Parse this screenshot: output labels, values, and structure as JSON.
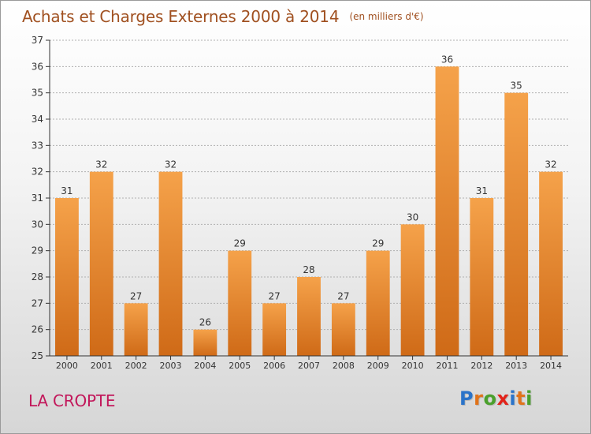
{
  "title": "Achats et Charges Externes 2000 à 2014",
  "subtitle": "(en milliers d'€)",
  "commune": "LA CROPTE",
  "logo": {
    "text": "Proxiti",
    "letter_colors": [
      "#2a73c9",
      "#e0731a",
      "#4aa02c",
      "#e2231a",
      "#2a73c9",
      "#e0731a",
      "#4aa02c"
    ]
  },
  "colors": {
    "title": "#a05020",
    "commune": "#c2185b",
    "bar_top": "#f5a24a",
    "bar_bottom": "#cf6a17",
    "axis": "#333333",
    "grid": "#b0b0b0"
  },
  "chart_data": {
    "type": "bar",
    "title": "Achats et Charges Externes 2000 à 2014",
    "subtitle": "(en milliers d'€)",
    "categories": [
      "2000",
      "2001",
      "2002",
      "2003",
      "2004",
      "2005",
      "2006",
      "2007",
      "2008",
      "2009",
      "2010",
      "2011",
      "2012",
      "2013",
      "2014"
    ],
    "values": [
      31,
      32,
      27,
      32,
      26,
      29,
      27,
      28,
      27,
      29,
      30,
      36,
      31,
      35,
      32
    ],
    "ylim": [
      25,
      37
    ],
    "yticks": [
      25,
      26,
      27,
      28,
      29,
      30,
      31,
      32,
      33,
      34,
      35,
      36,
      37
    ],
    "xlabel": "",
    "ylabel": "",
    "grid": true,
    "data_labels": true
  }
}
